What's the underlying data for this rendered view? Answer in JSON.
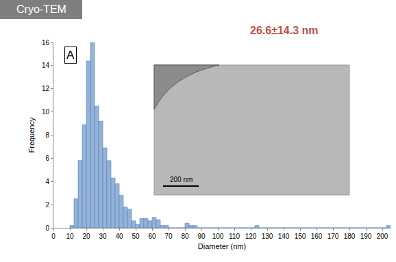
{
  "chart_data": {
    "type": "histogram",
    "title": "Cryo-TEM",
    "subtitle": "26.6±14.3 nm",
    "panel_label": "A",
    "scale_bar_label": "200 nm",
    "x_label": "Diameter (nm)",
    "y_label": "Frequency",
    "bins": [
      10,
      12.5,
      15,
      17.5,
      20,
      22.5,
      25,
      27.5,
      30,
      32.5,
      35,
      37.5,
      40,
      42.5,
      45,
      47.5,
      50,
      52.5,
      55,
      57.5,
      60,
      62.5,
      65,
      67.5,
      70,
      72.5,
      75,
      77.5,
      80,
      82.5,
      85,
      87.5,
      90,
      92.5,
      95,
      97.5,
      100,
      102.5,
      105,
      107.5,
      110,
      112.5,
      115,
      117.5,
      120,
      122.5,
      125,
      127.5,
      130,
      132.5,
      135,
      137.5,
      140,
      142.5,
      145,
      147.5,
      150,
      152.5,
      155,
      157.5,
      160,
      162.5,
      165,
      167.5,
      170,
      172.5,
      175,
      177.5,
      180,
      182.5,
      185,
      187.5,
      190,
      192.5,
      195,
      197.5,
      200,
      202.5,
      205
    ],
    "values": [
      0.2,
      2.5,
      5.8,
      8.9,
      14.4,
      16,
      10.5,
      9.2,
      6.9,
      5.8,
      4.3,
      3.8,
      2.8,
      1.8,
      1.6,
      0.6,
      0.3,
      0.8,
      0.8,
      0.6,
      0.9,
      0.7,
      0.2,
      0.2,
      0,
      0,
      0,
      0,
      0.4,
      0.2,
      0.2,
      0,
      0,
      0,
      0,
      0,
      0,
      0,
      0,
      0,
      0,
      0,
      0,
      0,
      0,
      0.2,
      0,
      0,
      0,
      0,
      0,
      0,
      0,
      0,
      0,
      0,
      0,
      0,
      0,
      0,
      0,
      0,
      0,
      0,
      0,
      0,
      0,
      0,
      0,
      0,
      0,
      0,
      0,
      0,
      0,
      0,
      0,
      0.2
    ],
    "color": "#95b3d7",
    "xlim": [
      0,
      205
    ],
    "xticks": [
      0,
      10,
      20,
      30,
      40,
      50,
      60,
      70,
      80,
      90,
      100,
      110,
      120,
      130,
      140,
      150,
      160,
      170,
      180,
      190,
      200
    ],
    "ylim": [
      0,
      16
    ],
    "yticks": [
      0,
      2,
      4,
      6,
      8,
      10,
      12,
      14,
      16
    ],
    "grid": false
  }
}
